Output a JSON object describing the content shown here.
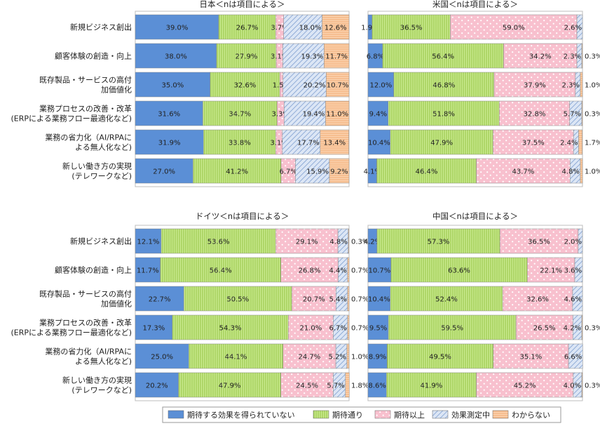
{
  "categories_text": [
    [
      "新規ビジネス創出"
    ],
    [
      "顧客体験の創造・向上"
    ],
    [
      "既存製品・サービスの高付",
      "加価値化"
    ],
    [
      "業務プロセスの改善・改革",
      "(ERPによる業務フロー最適化など)"
    ],
    [
      "業務の省力化（AI/RPAに",
      "よる無人化など)"
    ],
    [
      "新しい働き方の実現",
      "(テレワークなど)"
    ]
  ],
  "colors": {
    "s1": "#5b8fd6",
    "s2": "#b9e27a",
    "s3": "#f7b6c6",
    "s4": "#c8d8f0",
    "s5": "#f9c8a0"
  },
  "chart_data": [
    {
      "type": "bar",
      "title": "日本＜nは項目による＞",
      "categories": [
        "新規ビジネス創出",
        "顧客体験の創造・向上",
        "既存製品・サービスの高付加価値化",
        "業務プロセスの改善・改革(ERPによる業務フロー最適化など)",
        "業務の省力化（AI/RPAによる無人化など)",
        "新しい働き方の実現(テレワークなど)"
      ],
      "series": [
        {
          "name": "期待する効果を得られていない",
          "values": [
            39.0,
            38.0,
            35.0,
            31.6,
            31.9,
            27.0
          ],
          "labels": [
            "39.0%",
            "38.0%",
            "35.0%",
            "31.6%",
            "31.9%",
            "27.0%"
          ]
        },
        {
          "name": "期待通り",
          "values": [
            26.7,
            27.9,
            32.6,
            34.7,
            33.8,
            41.2
          ],
          "labels": [
            "26.7%",
            "27.9%",
            "32.6%",
            "34.7%",
            "33.8%",
            "41.2%"
          ]
        },
        {
          "name": "期待以上",
          "values": [
            3.7,
            3.1,
            1.5,
            3.3,
            3.1,
            6.7
          ],
          "labels": [
            "3.7%",
            "3.1%",
            "1.5%",
            "3.3%",
            "3.1%",
            "6.7%"
          ]
        },
        {
          "name": "効果測定中",
          "values": [
            18.0,
            19.3,
            20.2,
            19.4,
            17.7,
            15.9
          ],
          "labels": [
            "18.0%",
            "19.3%",
            "20.2%",
            "19.4%",
            "17.7%",
            "15.9%"
          ]
        },
        {
          "name": "わからない",
          "values": [
            12.6,
            11.7,
            10.7,
            11.0,
            13.4,
            9.2
          ],
          "labels": [
            "12.6%",
            "11.7%",
            "10.7%",
            "11.0%",
            "13.4%",
            "9.2%"
          ]
        }
      ]
    },
    {
      "type": "bar",
      "title": "米国＜nは項目による＞",
      "categories": [
        "新規ビジネス創出",
        "顧客体験の創造・向上",
        "既存製品・サービスの高付加価値化",
        "業務プロセスの改善・改革(ERPによる業務フロー最適化など)",
        "業務の省力化（AI/RPAによる無人化など)",
        "新しい働き方の実現(テレワークなど)"
      ],
      "series": [
        {
          "name": "期待する効果を得られていない",
          "values": [
            1.9,
            6.8,
            12.0,
            9.4,
            10.4,
            4.1
          ],
          "labels": [
            "1.9%",
            "6.8%",
            "12.0%",
            "9.4%",
            "10.4%",
            "4.1%"
          ]
        },
        {
          "name": "期待通り",
          "values": [
            36.5,
            56.4,
            46.8,
            51.8,
            47.9,
            46.4
          ],
          "labels": [
            "36.5%",
            "56.4%",
            "46.8%",
            "51.8%",
            "47.9%",
            "46.4%"
          ]
        },
        {
          "name": "期待以上",
          "values": [
            59.0,
            34.2,
            37.9,
            32.8,
            37.5,
            43.7
          ],
          "labels": [
            "59.0%",
            "34.2%",
            "37.9%",
            "32.8%",
            "37.5%",
            "43.7%"
          ]
        },
        {
          "name": "効果測定中",
          "values": [
            2.6,
            2.3,
            2.3,
            5.7,
            2.4,
            4.8
          ],
          "labels": [
            "2.6%",
            "2.3%",
            "2.3%",
            "5.7%",
            "2.4%",
            "4.8%"
          ]
        },
        {
          "name": "わからない",
          "values": [
            0,
            0.3,
            1.0,
            0.3,
            1.7,
            1.0
          ],
          "labels": [
            "",
            "0.3%",
            "1.0%",
            "0.3%",
            "1.7%",
            "1.0%"
          ]
        }
      ]
    },
    {
      "type": "bar",
      "title": "ドイツ＜nは項目による＞",
      "categories": [
        "新規ビジネス創出",
        "顧客体験の創造・向上",
        "既存製品・サービスの高付加価値化",
        "業務プロセスの改善・改革(ERPによる業務フロー最適化など)",
        "業務の省力化（AI/RPAによる無人化など)",
        "新しい働き方の実現(テレワークなど)"
      ],
      "series": [
        {
          "name": "期待する効果を得られていない",
          "values": [
            12.1,
            11.7,
            22.7,
            17.3,
            25.0,
            20.2
          ],
          "labels": [
            "12.1%",
            "11.7%",
            "22.7%",
            "17.3%",
            "25.0%",
            "20.2%"
          ]
        },
        {
          "name": "期待通り",
          "values": [
            53.6,
            56.4,
            50.5,
            54.3,
            44.1,
            47.9
          ],
          "labels": [
            "53.6%",
            "56.4%",
            "50.5%",
            "54.3%",
            "44.1%",
            "47.9%"
          ]
        },
        {
          "name": "期待以上",
          "values": [
            29.1,
            26.8,
            20.7,
            21.0,
            24.7,
            24.5
          ],
          "labels": [
            "29.1%",
            "26.8%",
            "20.7%",
            "21.0%",
            "24.7%",
            "24.5%"
          ]
        },
        {
          "name": "効果測定中",
          "values": [
            4.8,
            4.4,
            5.4,
            6.7,
            5.2,
            5.7
          ],
          "labels": [
            "4.8%",
            "4.4%",
            "5.4%",
            "6.7%",
            "5.2%",
            "5.7%"
          ]
        },
        {
          "name": "わからない",
          "values": [
            0.3,
            0.7,
            0.7,
            0.7,
            1.0,
            1.8
          ],
          "labels": [
            "0.3%",
            "0.7%",
            "0.7%",
            "0.7%",
            "1.0%",
            "1.8%"
          ]
        }
      ]
    },
    {
      "type": "bar",
      "title": "中国＜nは項目による＞",
      "categories": [
        "新規ビジネス創出",
        "顧客体験の創造・向上",
        "既存製品・サービスの高付加価値化",
        "業務プロセスの改善・改革(ERPによる業務フロー最適化など)",
        "業務の省力化（AI/RPAによる無人化など)",
        "新しい働き方の実現(テレワークなど)"
      ],
      "series": [
        {
          "name": "期待する効果を得られていない",
          "values": [
            4.2,
            10.7,
            10.4,
            9.5,
            8.9,
            8.6
          ],
          "labels": [
            "4.2%",
            "10.7%",
            "10.4%",
            "9.5%",
            "8.9%",
            "8.6%"
          ]
        },
        {
          "name": "期待通り",
          "values": [
            57.3,
            63.6,
            52.4,
            59.5,
            49.5,
            41.9
          ],
          "labels": [
            "57.3%",
            "63.6%",
            "52.4%",
            "59.5%",
            "49.5%",
            "41.9%"
          ]
        },
        {
          "name": "期待以上",
          "values": [
            36.5,
            22.1,
            32.6,
            26.5,
            35.1,
            45.2
          ],
          "labels": [
            "36.5%",
            "22.1%",
            "32.6%",
            "26.5%",
            "35.1%",
            "45.2%"
          ]
        },
        {
          "name": "効果測定中",
          "values": [
            2.0,
            3.6,
            4.6,
            4.2,
            6.6,
            4.0
          ],
          "labels": [
            "2.0%",
            "3.6%",
            "4.6%",
            "4.2%",
            "6.6%",
            "4.0%"
          ]
        },
        {
          "name": "わからない",
          "values": [
            0,
            0,
            0,
            0.3,
            0,
            0.3
          ],
          "labels": [
            "",
            "",
            "",
            "0.3%",
            "",
            "0.3%"
          ]
        }
      ]
    }
  ]
}
